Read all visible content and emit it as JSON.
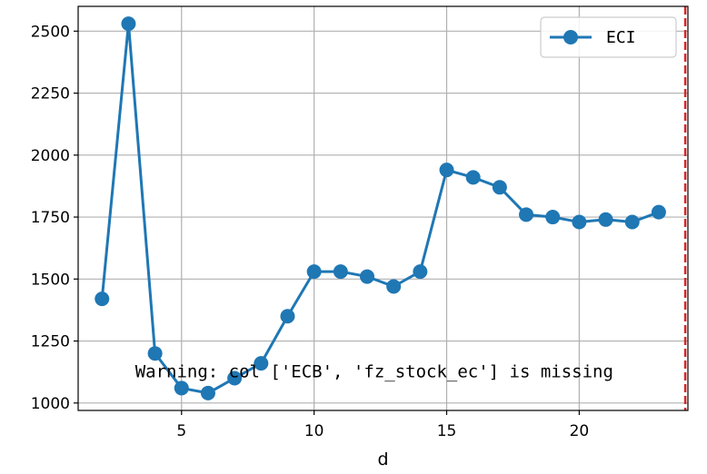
{
  "chart_data": {
    "type": "line",
    "xlabel": "d",
    "ylabel": "",
    "xlim": [
      1.1,
      24.1
    ],
    "ylim": [
      970,
      2600
    ],
    "xticks": [
      5,
      10,
      15,
      20
    ],
    "yticks": [
      1000,
      1250,
      1500,
      1750,
      2000,
      2250,
      2500
    ],
    "grid": true,
    "legend_position": "top-right",
    "series": [
      {
        "name": "ECI",
        "color": "#1f77b4",
        "marker": "circle",
        "x": [
          2,
          3,
          4,
          5,
          6,
          7,
          8,
          9,
          10,
          11,
          12,
          13,
          14,
          15,
          16,
          17,
          18,
          19,
          20,
          21,
          22,
          23
        ],
        "y": [
          1420,
          2530,
          1200,
          1060,
          1040,
          1100,
          1160,
          1350,
          1530,
          1530,
          1510,
          1470,
          1530,
          1940,
          1910,
          1870,
          1760,
          1750,
          1730,
          1740,
          1730,
          1770
        ]
      }
    ],
    "vline": {
      "x": 24,
      "color": "#d62728",
      "style": "dashed"
    },
    "annotations": [
      {
        "text": "Warning: col ['ECB', 'fz_stock_ec'] is missing",
        "x": 3.25,
        "y": 1130
      }
    ]
  }
}
